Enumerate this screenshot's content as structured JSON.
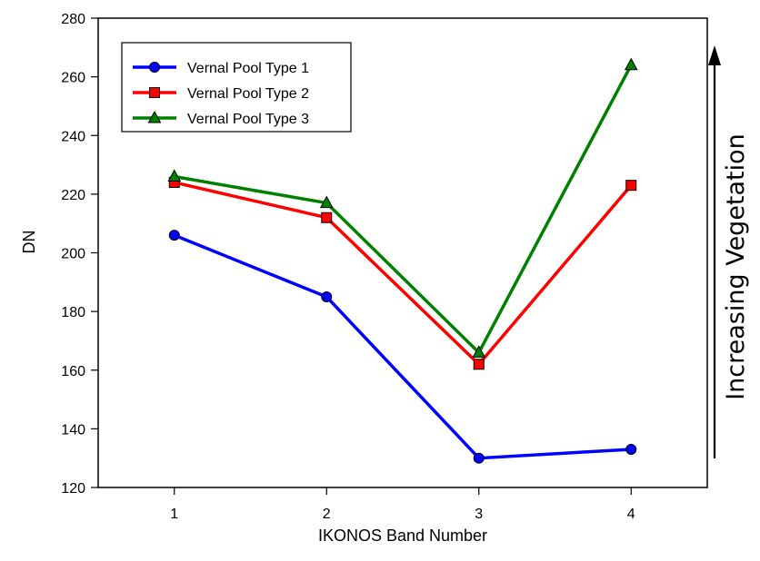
{
  "chart_data": {
    "type": "line",
    "title": "",
    "xlabel": "IKONOS Band Number",
    "ylabel": "DN",
    "x": [
      1,
      2,
      3,
      4
    ],
    "xlim": [
      0.5,
      4.5
    ],
    "ylim": [
      120,
      280
    ],
    "yticks": [
      120,
      140,
      160,
      180,
      200,
      220,
      240,
      260,
      280
    ],
    "legend_position": "top-left",
    "series": [
      {
        "name": "Vernal Pool Type 1",
        "color": "#0000ff",
        "marker": "circle",
        "values": [
          206,
          185,
          130,
          133
        ]
      },
      {
        "name": "Vernal Pool Type 2",
        "color": "#ff0000",
        "marker": "square",
        "values": [
          224,
          212,
          162,
          223
        ]
      },
      {
        "name": "Vernal Pool Type 3",
        "color": "#008000",
        "marker": "triangle",
        "values": [
          226,
          217,
          166,
          264
        ]
      }
    ],
    "annotation": {
      "text": "Increasing Vegetation",
      "arrow_direction": "up"
    }
  }
}
